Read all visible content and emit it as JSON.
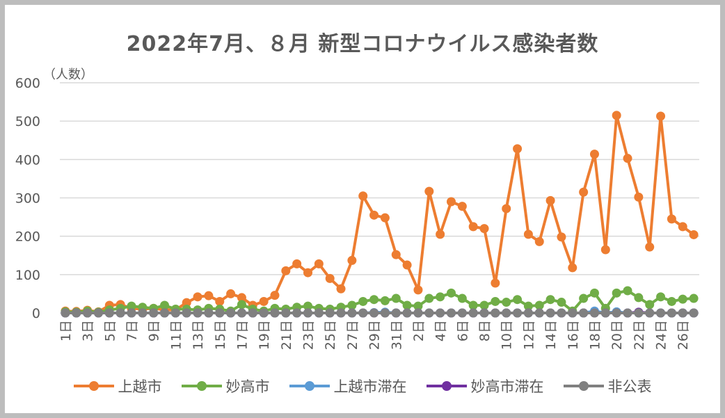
{
  "chart_data": {
    "type": "line",
    "title": "2022年7月、８月 新型コロナウイルス感染者数",
    "ylabel": "（人数）",
    "ylim": [
      0,
      600
    ],
    "yticks": [
      0,
      100,
      200,
      300,
      400,
      500,
      600
    ],
    "grid": true,
    "legend_position": "bottom",
    "x": [
      "1日",
      "2日",
      "3日",
      "4日",
      "5日",
      "6日",
      "7日",
      "8日",
      "9日",
      "10日",
      "11日",
      "12日",
      "13日",
      "14日",
      "15日",
      "16日",
      "17日",
      "18日",
      "19日",
      "20日",
      "21日",
      "22日",
      "23日",
      "24日",
      "25日",
      "26日",
      "27日",
      "28日",
      "29日",
      "30日",
      "31日",
      "1日",
      "2日",
      "3日",
      "4日",
      "5日",
      "6日",
      "7日",
      "8日",
      "9日",
      "10日",
      "11日",
      "12日",
      "13日",
      "14日",
      "15日",
      "16日",
      "17日",
      "18日",
      "19日",
      "20日",
      "21日",
      "22日",
      "23日",
      "24日",
      "25日",
      "26日",
      "27日"
    ],
    "tick_labels": [
      "1日",
      "",
      "3日",
      "",
      "5日",
      "",
      "7日",
      "",
      "9日",
      "",
      "11日",
      "",
      "13日",
      "",
      "15日",
      "",
      "17日",
      "",
      "19日",
      "",
      "21日",
      "",
      "23日",
      "",
      "25日",
      "",
      "27日",
      "",
      "29日",
      "",
      "31日",
      "",
      "2日",
      "",
      "4日",
      "",
      "6日",
      "",
      "8日",
      "",
      "10日",
      "",
      "12日",
      "",
      "14日",
      "",
      "16日",
      "",
      "18日",
      "",
      "20日",
      "",
      "22日",
      "",
      "24日",
      "",
      "26日",
      ""
    ],
    "series": [
      {
        "name": "上越市",
        "color": "#ed7d31",
        "values": [
          5,
          4,
          7,
          3,
          20,
          22,
          12,
          10,
          12,
          8,
          8,
          27,
          42,
          45,
          30,
          50,
          40,
          20,
          30,
          46,
          110,
          128,
          105,
          128,
          90,
          63,
          137,
          305,
          255,
          248,
          152,
          125,
          60,
          317,
          205,
          290,
          278,
          225,
          220,
          78,
          272,
          428,
          205,
          186,
          293,
          198,
          118,
          315,
          414,
          165,
          515,
          403,
          302,
          172,
          513,
          245,
          225,
          204
        ]
      },
      {
        "name": "妙高市",
        "color": "#70ad47",
        "values": [
          3,
          2,
          5,
          2,
          8,
          12,
          18,
          15,
          12,
          20,
          10,
          10,
          8,
          12,
          10,
          5,
          22,
          10,
          5,
          12,
          10,
          15,
          18,
          12,
          10,
          15,
          20,
          30,
          35,
          32,
          38,
          20,
          18,
          38,
          42,
          52,
          38,
          20,
          20,
          30,
          28,
          35,
          18,
          20,
          35,
          28,
          5,
          38,
          52,
          12,
          52,
          58,
          40,
          22,
          42,
          30,
          36,
          38
        ]
      },
      {
        "name": "上越市滞在",
        "color": "#5b9bd5",
        "values": [
          0,
          0,
          0,
          0,
          0,
          0,
          0,
          0,
          0,
          0,
          0,
          0,
          0,
          0,
          0,
          0,
          0,
          0,
          0,
          0,
          0,
          0,
          0,
          0,
          0,
          0,
          0,
          0,
          1,
          2,
          0,
          0,
          0,
          0,
          0,
          0,
          0,
          0,
          0,
          0,
          0,
          0,
          0,
          0,
          0,
          0,
          0,
          0,
          5,
          0,
          3,
          0,
          0,
          0,
          0,
          0,
          0,
          0
        ]
      },
      {
        "name": "妙高市滞在",
        "color": "#7030a0",
        "values": [
          0,
          0,
          0,
          0,
          0,
          0,
          0,
          0,
          0,
          0,
          0,
          0,
          0,
          0,
          0,
          0,
          0,
          0,
          0,
          0,
          0,
          0,
          0,
          0,
          0,
          0,
          0,
          0,
          0,
          0,
          0,
          0,
          0,
          0,
          0,
          0,
          0,
          0,
          0,
          0,
          0,
          0,
          0,
          0,
          0,
          0,
          0,
          0,
          0,
          0,
          0,
          0,
          2,
          0,
          0,
          0,
          0,
          0
        ]
      },
      {
        "name": "非公表",
        "color": "#808080",
        "values": [
          0,
          0,
          0,
          0,
          0,
          0,
          0,
          0,
          0,
          0,
          0,
          0,
          0,
          0,
          0,
          0,
          0,
          0,
          0,
          0,
          0,
          0,
          0,
          0,
          0,
          0,
          0,
          0,
          0,
          0,
          0,
          0,
          0,
          0,
          0,
          0,
          0,
          0,
          0,
          0,
          0,
          0,
          0,
          0,
          0,
          0,
          0,
          0,
          0,
          0,
          0,
          0,
          0,
          0,
          0,
          0,
          0,
          0
        ]
      }
    ]
  }
}
